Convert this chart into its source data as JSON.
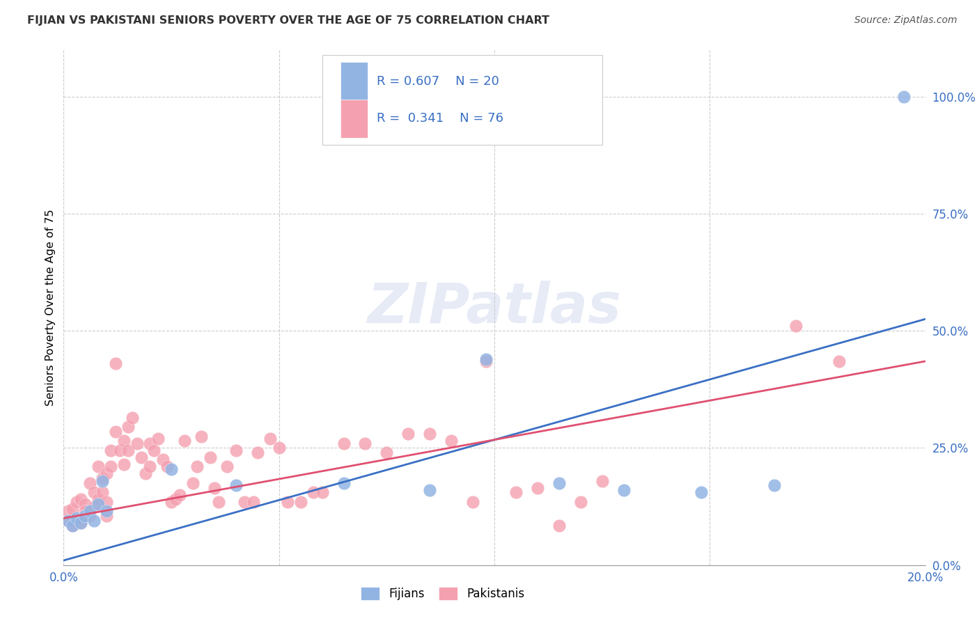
{
  "title": "FIJIAN VS PAKISTANI SENIORS POVERTY OVER THE AGE OF 75 CORRELATION CHART",
  "source": "Source: ZipAtlas.com",
  "ylabel": "Seniors Poverty Over the Age of 75",
  "xlim": [
    0.0,
    0.2
  ],
  "ylim": [
    0.0,
    1.1
  ],
  "yticks": [
    0.0,
    0.25,
    0.5,
    0.75,
    1.0
  ],
  "ytick_labels": [
    "0.0%",
    "25.0%",
    "50.0%",
    "75.0%",
    "100.0%"
  ],
  "xticks": [
    0.0,
    0.05,
    0.1,
    0.15,
    0.2
  ],
  "xtick_labels": [
    "0.0%",
    "",
    "",
    "",
    "20.0%"
  ],
  "fijian_color": "#92b4e3",
  "pakistani_color": "#f4a0b0",
  "fijian_line_color": "#3a6fc4",
  "pakistani_line_color": "#e05070",
  "legend_text_color": "#3a6fc4",
  "watermark_text": "ZIPatlas",
  "fijian_R": 0.607,
  "fijian_N": 20,
  "pakistani_R": 0.341,
  "pakistani_N": 76,
  "fijian_line_x0": 0.0,
  "fijian_line_y0": 0.01,
  "fijian_line_x1": 0.2,
  "fijian_line_y1": 0.525,
  "pakistani_line_x0": 0.0,
  "pakistani_line_y0": 0.1,
  "pakistani_line_x1": 0.2,
  "pakistani_line_y1": 0.435,
  "fijian_points": [
    [
      0.001,
      0.095
    ],
    [
      0.002,
      0.085
    ],
    [
      0.003,
      0.1
    ],
    [
      0.004,
      0.09
    ],
    [
      0.005,
      0.105
    ],
    [
      0.006,
      0.115
    ],
    [
      0.007,
      0.095
    ],
    [
      0.008,
      0.13
    ],
    [
      0.009,
      0.18
    ],
    [
      0.01,
      0.115
    ],
    [
      0.025,
      0.205
    ],
    [
      0.04,
      0.17
    ],
    [
      0.065,
      0.175
    ],
    [
      0.085,
      0.16
    ],
    [
      0.098,
      0.44
    ],
    [
      0.115,
      0.175
    ],
    [
      0.13,
      0.16
    ],
    [
      0.148,
      0.155
    ],
    [
      0.165,
      0.17
    ],
    [
      0.195,
      1.0
    ]
  ],
  "pakistani_points": [
    [
      0.001,
      0.095
    ],
    [
      0.001,
      0.115
    ],
    [
      0.002,
      0.12
    ],
    [
      0.002,
      0.085
    ],
    [
      0.003,
      0.135
    ],
    [
      0.003,
      0.095
    ],
    [
      0.004,
      0.14
    ],
    [
      0.004,
      0.09
    ],
    [
      0.005,
      0.13
    ],
    [
      0.005,
      0.115
    ],
    [
      0.006,
      0.105
    ],
    [
      0.006,
      0.175
    ],
    [
      0.007,
      0.155
    ],
    [
      0.007,
      0.125
    ],
    [
      0.008,
      0.14
    ],
    [
      0.008,
      0.21
    ],
    [
      0.009,
      0.185
    ],
    [
      0.009,
      0.155
    ],
    [
      0.01,
      0.195
    ],
    [
      0.01,
      0.135
    ],
    [
      0.01,
      0.105
    ],
    [
      0.011,
      0.245
    ],
    [
      0.011,
      0.21
    ],
    [
      0.012,
      0.285
    ],
    [
      0.012,
      0.43
    ],
    [
      0.013,
      0.245
    ],
    [
      0.014,
      0.265
    ],
    [
      0.014,
      0.215
    ],
    [
      0.015,
      0.295
    ],
    [
      0.015,
      0.245
    ],
    [
      0.016,
      0.315
    ],
    [
      0.017,
      0.26
    ],
    [
      0.018,
      0.23
    ],
    [
      0.019,
      0.195
    ],
    [
      0.02,
      0.21
    ],
    [
      0.02,
      0.26
    ],
    [
      0.021,
      0.245
    ],
    [
      0.022,
      0.27
    ],
    [
      0.023,
      0.225
    ],
    [
      0.024,
      0.21
    ],
    [
      0.025,
      0.135
    ],
    [
      0.026,
      0.14
    ],
    [
      0.027,
      0.15
    ],
    [
      0.028,
      0.265
    ],
    [
      0.03,
      0.175
    ],
    [
      0.031,
      0.21
    ],
    [
      0.032,
      0.275
    ],
    [
      0.034,
      0.23
    ],
    [
      0.035,
      0.165
    ],
    [
      0.036,
      0.135
    ],
    [
      0.038,
      0.21
    ],
    [
      0.04,
      0.245
    ],
    [
      0.042,
      0.135
    ],
    [
      0.044,
      0.135
    ],
    [
      0.045,
      0.24
    ],
    [
      0.048,
      0.27
    ],
    [
      0.05,
      0.25
    ],
    [
      0.052,
      0.135
    ],
    [
      0.055,
      0.135
    ],
    [
      0.058,
      0.155
    ],
    [
      0.06,
      0.155
    ],
    [
      0.065,
      0.26
    ],
    [
      0.07,
      0.26
    ],
    [
      0.075,
      0.24
    ],
    [
      0.08,
      0.28
    ],
    [
      0.085,
      0.28
    ],
    [
      0.09,
      0.265
    ],
    [
      0.095,
      0.135
    ],
    [
      0.098,
      0.435
    ],
    [
      0.105,
      0.155
    ],
    [
      0.11,
      0.165
    ],
    [
      0.115,
      0.085
    ],
    [
      0.12,
      0.135
    ],
    [
      0.125,
      0.18
    ],
    [
      0.17,
      0.51
    ],
    [
      0.18,
      0.435
    ]
  ]
}
